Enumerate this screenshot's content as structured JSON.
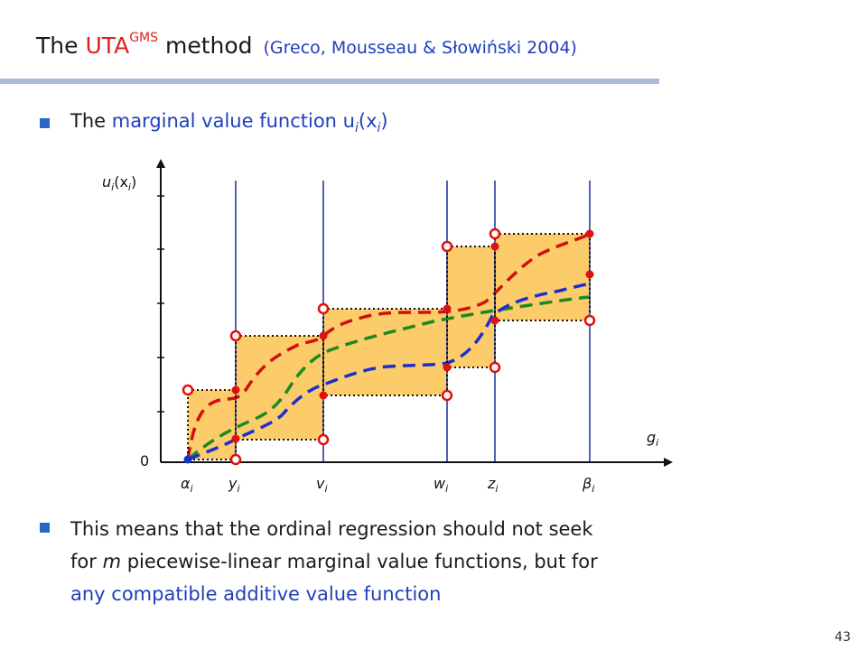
{
  "slide": {
    "title_prefix": "The ",
    "title_accent": "UTA",
    "title_sup": "GMS",
    "title_suffix": " method",
    "citation": "(Greco, Mousseau & Słowiński 2004)",
    "page_number": "43"
  },
  "bullet1": {
    "text_before": "The ",
    "highlight": "marginal value function u",
    "func_sub": "i",
    "func_open": "(x",
    "func_sub2": "i",
    "func_close": ")"
  },
  "bullet2": {
    "line1": "This means that the ordinal regression should not seek",
    "line2_prefix": "for ",
    "line2_var": "m",
    "line2_suffix": " piecewise-linear marginal value functions, but for",
    "line3_highlight": "any compatible additive value function"
  },
  "diagram": {
    "y_axis_label": "u",
    "y_axis_sub": "i",
    "y_axis_label_paren": "(x",
    "y_axis_label_sub2": "i",
    "y_axis_label_close": ")",
    "x_axis_label": "g",
    "x_axis_sub": "i",
    "origin_label": "0",
    "x_tick_labels": [
      {
        "main": "α",
        "sub": "i"
      },
      {
        "main": "y",
        "sub": "i"
      },
      {
        "main": "v",
        "sub": "i"
      },
      {
        "main": "w",
        "sub": "i"
      },
      {
        "main": "z",
        "sub": "i"
      },
      {
        "main": "β",
        "sub": "i"
      }
    ],
    "colors": {
      "box_fill": "#fccb6a",
      "vertical_line": "#1c2e9c",
      "curve_red": "#d01010",
      "curve_green": "#1e8a1e",
      "curve_blue": "#1a2fd0",
      "point": "#e01010"
    },
    "curves": [
      "red",
      "green",
      "blue"
    ]
  }
}
